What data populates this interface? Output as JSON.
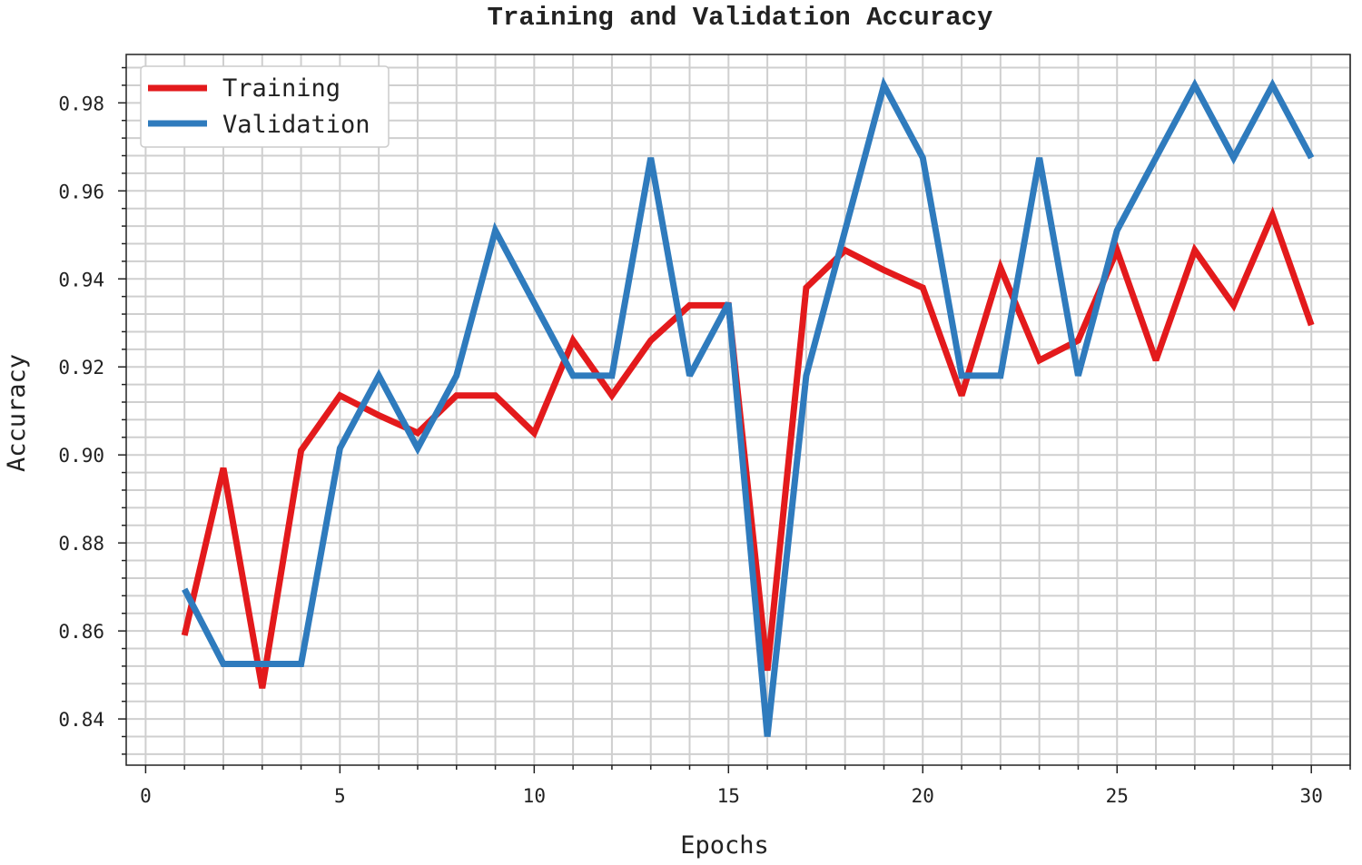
{
  "chart_data": {
    "type": "line",
    "title": "Training and Validation Accuracy",
    "xlabel": "Epochs",
    "ylabel": "Accuracy",
    "xlim": [
      -0.5,
      31
    ],
    "ylim": [
      0.8295,
      0.991
    ],
    "xticks": [
      0,
      5,
      10,
      15,
      20,
      25,
      30
    ],
    "yticks": [
      0.84,
      0.86,
      0.88,
      0.9,
      0.92,
      0.94,
      0.96,
      0.98
    ],
    "ytick_labels": [
      "0.84",
      "0.86",
      "0.88",
      "0.90",
      "0.92",
      "0.94",
      "0.96",
      "0.98"
    ],
    "grid": true,
    "legend_position": "top-left",
    "x": [
      1,
      2,
      3,
      4,
      5,
      6,
      7,
      8,
      9,
      10,
      11,
      12,
      13,
      14,
      15,
      16,
      17,
      18,
      19,
      20,
      21,
      22,
      23,
      24,
      25,
      26,
      27,
      28,
      29,
      30
    ],
    "series": [
      {
        "name": "Training",
        "color": "#e31a1c",
        "values": [
          0.859,
          0.897,
          0.847,
          0.901,
          0.9135,
          0.909,
          0.905,
          0.9135,
          0.9135,
          0.905,
          0.926,
          0.9135,
          0.926,
          0.934,
          0.934,
          0.851,
          0.938,
          0.9465,
          0.942,
          0.938,
          0.9135,
          0.9425,
          0.9215,
          0.926,
          0.9465,
          0.9215,
          0.9465,
          0.934,
          0.9545,
          0.9295
        ]
      },
      {
        "name": "Validation",
        "color": "#2f7bbd",
        "values": [
          0.8695,
          0.8525,
          0.8525,
          0.8525,
          0.9015,
          0.918,
          0.9015,
          0.918,
          0.951,
          0.9345,
          0.918,
          0.918,
          0.9675,
          0.918,
          0.9345,
          0.836,
          0.918,
          0.951,
          0.984,
          0.9675,
          0.918,
          0.918,
          0.9675,
          0.918,
          0.951,
          0.9675,
          0.984,
          0.9675,
          0.984,
          0.9675
        ]
      }
    ]
  }
}
